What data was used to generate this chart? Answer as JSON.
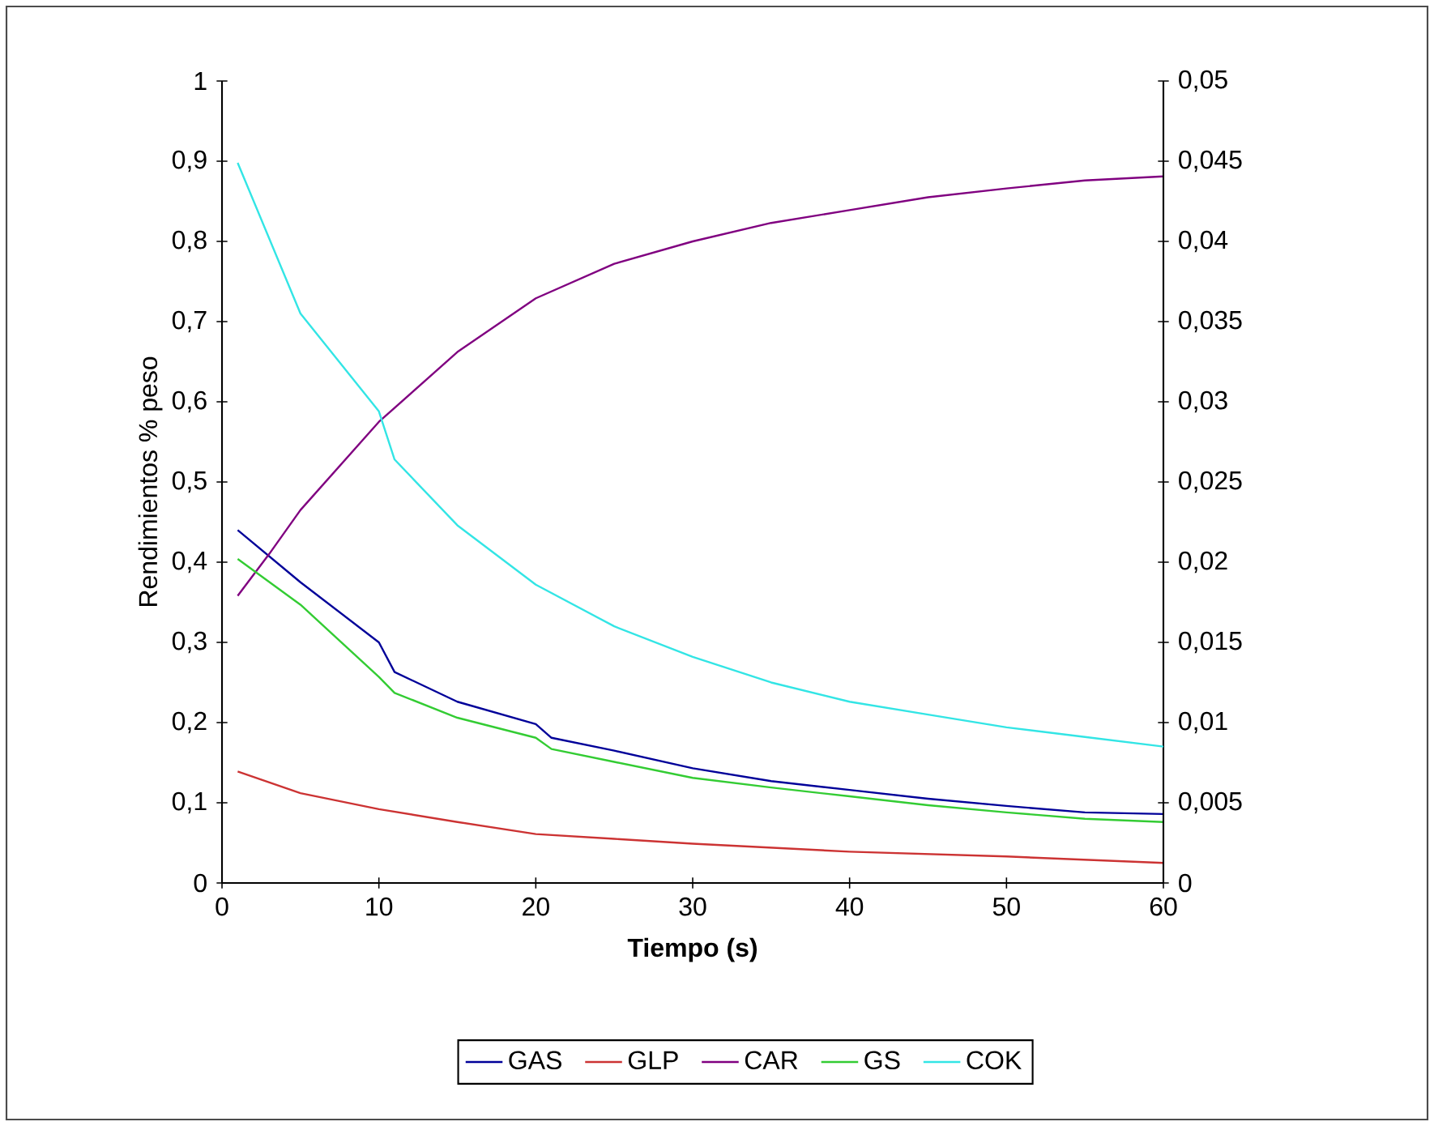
{
  "chart_data": {
    "type": "line",
    "xlabel": "**Tiempo (s)**",
    "ylabel": "Rendimientos  % peso",
    "xlim": [
      0,
      60
    ],
    "xticks": [
      0,
      10,
      20,
      30,
      40,
      50,
      60
    ],
    "ylim": [
      0,
      1
    ],
    "yticks": [
      0,
      {
        "value": 0.1,
        "label": "0,1"
      },
      {
        "value": 0.2,
        "label": "0,2"
      },
      {
        "value": 0.3,
        "label": "0,3"
      },
      {
        "value": 0.4,
        "label": "0,4"
      },
      {
        "value": 0.5,
        "label": "0,5"
      },
      {
        "value": 0.6,
        "label": "0,6"
      },
      {
        "value": 0.7,
        "label": "0,7"
      },
      {
        "value": 0.8,
        "label": "0,8"
      },
      {
        "value": 0.9,
        "label": "0,9"
      },
      1
    ],
    "y2lim": [
      0,
      0.05
    ],
    "y2ticks": [
      0,
      {
        "value": 0.005,
        "label": "0,005"
      },
      {
        "value": 0.01,
        "label": "0,01"
      },
      {
        "value": 0.015,
        "label": "0,015"
      },
      {
        "value": 0.02,
        "label": "0,02"
      },
      {
        "value": 0.025,
        "label": "0,025"
      },
      {
        "value": 0.03,
        "label": "0,03"
      },
      {
        "value": 0.035,
        "label": "0,035"
      },
      {
        "value": 0.04,
        "label": "0,04"
      },
      {
        "value": 0.045,
        "label": "0,045"
      },
      {
        "value": 0.05,
        "label": "0,05"
      }
    ],
    "legend": "bottom",
    "series": [
      {
        "name": "GAS",
        "color": "#000099",
        "x": [
          1,
          5,
          10,
          11,
          15,
          20,
          21,
          25,
          30,
          35,
          40,
          45,
          50,
          55,
          60
        ],
        "values": [
          0.44,
          0.375,
          0.3,
          0.263,
          0.226,
          0.198,
          0.181,
          0.165,
          0.143,
          0.127,
          0.116,
          0.105,
          0.096,
          0.088,
          0.086
        ]
      },
      {
        "name": "GLP",
        "color": "#cc3333",
        "x": [
          1,
          5,
          10,
          15,
          20,
          25,
          30,
          40,
          50,
          60
        ],
        "values": [
          0.139,
          0.112,
          0.092,
          0.076,
          0.061,
          0.055,
          0.049,
          0.039,
          0.033,
          0.025
        ]
      },
      {
        "name": "CAR",
        "color": "#800080",
        "x": [
          1,
          3,
          5,
          10,
          15,
          20,
          25,
          30,
          35,
          40,
          45,
          50,
          55,
          60
        ],
        "values": [
          0.358,
          0.41,
          0.465,
          0.575,
          0.662,
          0.729,
          0.772,
          0.8,
          0.823,
          0.839,
          0.855,
          0.866,
          0.876,
          0.881
        ]
      },
      {
        "name": "GS",
        "color": "#33cc33",
        "x": [
          1,
          5,
          10,
          11,
          15,
          20,
          21,
          25,
          30,
          35,
          40,
          45,
          50,
          55,
          60
        ],
        "values": [
          0.404,
          0.347,
          0.257,
          0.237,
          0.206,
          0.181,
          0.167,
          0.151,
          0.131,
          0.119,
          0.108,
          0.097,
          0.088,
          0.08,
          0.076
        ]
      },
      {
        "name": "COK",
        "color": "#33e5e5",
        "axis": "y2",
        "x": [
          1,
          5,
          10,
          11,
          15,
          20,
          25,
          30,
          35,
          40,
          45,
          50,
          55,
          60
        ],
        "values": [
          0.0449,
          0.0355,
          0.0294,
          0.0264,
          0.0223,
          0.0186,
          0.016,
          0.0141,
          0.0125,
          0.0113,
          0.0105,
          0.0097,
          0.0091,
          0.0085
        ]
      }
    ]
  }
}
